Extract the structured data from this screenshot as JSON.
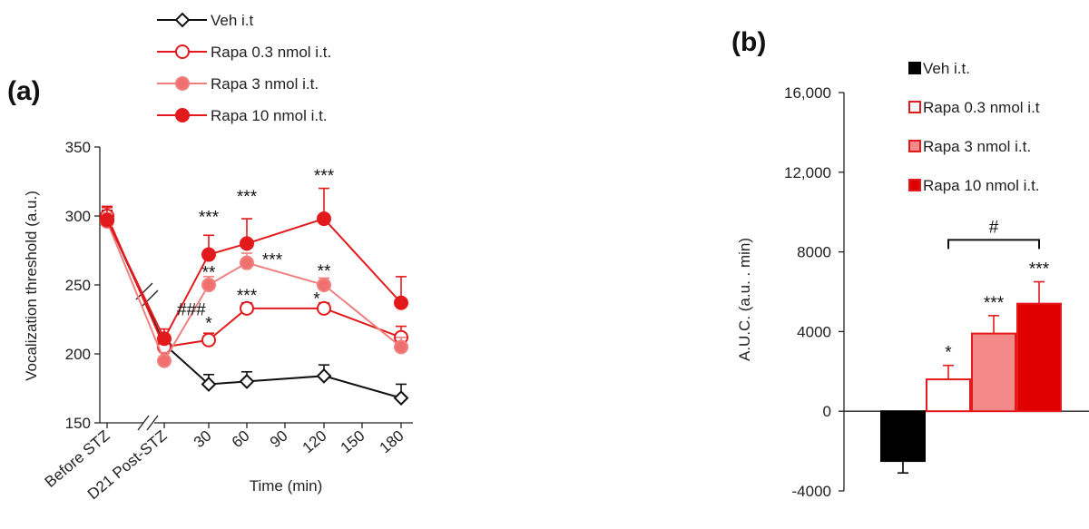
{
  "chart_data": [
    {
      "panel": "(a)",
      "type": "line",
      "xlabel": "Time  (min)",
      "ylabel": "Vocalization threshold  (a.u.)",
      "ylim": [
        150,
        350
      ],
      "yticks": [
        150,
        200,
        250,
        300,
        350
      ],
      "x_categories": [
        "Before STZ",
        "D21 Post-STZ",
        "30",
        "60",
        "90",
        "120",
        "150",
        "180"
      ],
      "axis_break": true,
      "series": [
        {
          "name": "Veh i.t",
          "marker": "diamond-open",
          "color": "#111111",
          "x": [
            "Before STZ",
            "D21 Post-STZ",
            "30",
            "60",
            "120",
            "180"
          ],
          "values": [
            298,
            207,
            178,
            180,
            184,
            168
          ],
          "err": [
            6,
            6,
            7,
            7,
            8,
            10
          ]
        },
        {
          "name": "Rapa 0.3 nmol i.t.",
          "marker": "circle-open",
          "color": "#e31a1c",
          "x": [
            "Before STZ",
            "D21 Post-STZ",
            "30",
            "60",
            "120",
            "180"
          ],
          "values": [
            300,
            205,
            210,
            233,
            233,
            212
          ],
          "err": [
            6,
            6,
            5,
            4,
            4,
            8
          ]
        },
        {
          "name": "Rapa 3 nmol i.t.",
          "marker": "circle-light",
          "color": "#f08080",
          "x": [
            "Before STZ",
            "D21 Post-STZ",
            "30",
            "60",
            "120",
            "180"
          ],
          "values": [
            296,
            195,
            250,
            266,
            250,
            205
          ],
          "err": [
            6,
            6,
            6,
            7,
            5,
            7
          ]
        },
        {
          "name": "Rapa 10 nmol i.t.",
          "marker": "circle-filled",
          "color": "#e31a1c",
          "x": [
            "Before STZ",
            "D21 Post-STZ",
            "30",
            "60",
            "120",
            "180"
          ],
          "values": [
            297,
            211,
            272,
            280,
            298,
            237
          ],
          "err": [
            10,
            7,
            14,
            18,
            22,
            19
          ]
        }
      ],
      "annotations": [
        {
          "x": "D21 Post-STZ",
          "y": 228,
          "text": "###"
        },
        {
          "x": "30",
          "y": 295,
          "text": "***"
        },
        {
          "x": "30",
          "y": 255,
          "text": "**"
        },
        {
          "x": "30",
          "y": 218,
          "text": "*"
        },
        {
          "x": "60",
          "y": 310,
          "text": "***"
        },
        {
          "x": "60",
          "y": 238,
          "text": "***"
        },
        {
          "x": "60",
          "y": 264,
          "text": "***",
          "offset": "right"
        },
        {
          "x": "120",
          "y": 325,
          "text": "***"
        },
        {
          "x": "120",
          "y": 256,
          "text": "**"
        },
        {
          "x": "120",
          "y": 236,
          "text": "*",
          "offset": "left"
        }
      ],
      "legend_position": "top-left"
    },
    {
      "panel": "(b)",
      "type": "bar",
      "ylabel": "A.U.C. (a.u. . min)",
      "ylim": [
        -4000,
        16000
      ],
      "ytick_labels": [
        "16,000",
        "12,000",
        "8000",
        "4000",
        "0",
        "-4000"
      ],
      "yticks": [
        16000,
        12000,
        8000,
        4000,
        0,
        -4000
      ],
      "categories": [
        "Veh i.t.",
        "Rapa 0.3 nmol i.t",
        "Rapa 3 nmol i.t.",
        "Rapa 10 nmol i.t."
      ],
      "values": [
        -2500,
        1600,
        3900,
        5400
      ],
      "err": [
        600,
        700,
        900,
        1100
      ],
      "colors": [
        "#000000",
        "#ffffff",
        "#f4898a",
        "#e00000"
      ],
      "edgecolors": [
        "#000000",
        "#e31a1c",
        "#e31a1c",
        "#e31a1c"
      ],
      "significance": [
        "",
        "*",
        "***",
        "***"
      ],
      "bracket": {
        "from": 1,
        "to": 3,
        "label": "#",
        "y": 8600
      },
      "legend_position": "top-right"
    }
  ]
}
